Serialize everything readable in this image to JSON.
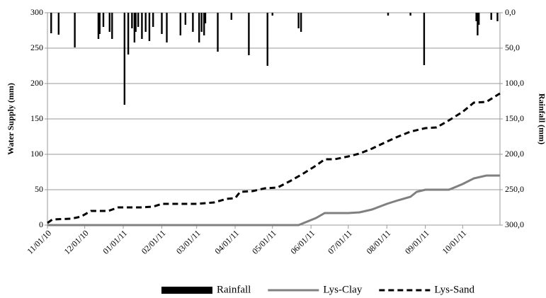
{
  "chart_data": {
    "type": "line",
    "ylabel": "Water Supply (mm)",
    "y2label": "Rainfall (mm)",
    "xlim": [
      "11/01/10",
      "10/31/11"
    ],
    "xticks": [
      "11/01/10",
      "12/01/10",
      "01/01/11",
      "02/01/11",
      "03/01/11",
      "04/01/11",
      "05/01/11",
      "06/01/11",
      "07/01/11",
      "08/01/11",
      "09/01/11",
      "10/01/11"
    ],
    "ylim": [
      0,
      300
    ],
    "yticks": [
      0,
      50,
      100,
      150,
      200,
      250,
      300
    ],
    "y2lim": [
      300,
      0
    ],
    "y2ticks": [
      {
        "value": 0,
        "label": "0,0"
      },
      {
        "value": 50,
        "label": "50,0"
      },
      {
        "value": 100,
        "label": "100,0"
      },
      {
        "value": 150,
        "label": "150,0"
      },
      {
        "value": 200,
        "label": "200,0"
      },
      {
        "value": 250,
        "label": "250,0"
      },
      {
        "value": 300,
        "label": "300,0"
      }
    ],
    "grid": true,
    "legend": "bottom",
    "series": [
      {
        "name": "Rainfall",
        "type": "bar",
        "axis": "y2",
        "color": "#000000",
        "x": [
          "11/04/10",
          "11/10/10",
          "11/23/10",
          "12/12/10",
          "12/13/10",
          "12/16/10",
          "12/21/10",
          "12/23/10",
          "01/02/11",
          "01/05/11",
          "01/08/11",
          "01/10/11",
          "01/11/11",
          "01/13/11",
          "01/16/11",
          "01/19/11",
          "01/22/11",
          "01/25/11",
          "02/01/11",
          "02/05/11",
          "02/16/11",
          "02/20/11",
          "02/26/11",
          "03/03/11",
          "03/05/11",
          "03/07/11",
          "03/08/11",
          "03/18/11",
          "03/29/11",
          "04/12/11",
          "04/27/11",
          "05/01/11",
          "05/22/11",
          "05/24/11",
          "08/02/11",
          "08/20/11",
          "08/31/11",
          "10/12/11",
          "10/13/11",
          "10/14/11",
          "10/24/11",
          "10/29/11"
        ],
        "values": [
          29,
          31,
          49,
          37,
          30,
          20,
          27,
          37,
          130,
          59,
          22,
          42,
          27,
          20,
          37,
          27,
          40,
          20,
          30,
          42,
          32,
          17,
          27,
          42,
          27,
          32,
          15,
          55,
          10,
          60,
          75,
          4,
          22,
          27,
          4,
          4,
          74,
          12,
          32,
          17,
          10,
          12
        ]
      },
      {
        "name": "Lys-Clay",
        "type": "line",
        "axis": "y",
        "color": "#808080",
        "dash": "solid",
        "x": [
          "11/01/10",
          "05/22/11",
          "06/05/11",
          "06/12/11",
          "07/01/11",
          "07/10/11",
          "07/20/11",
          "08/01/11",
          "08/10/11",
          "08/20/11",
          "08/25/11",
          "09/01/11",
          "09/20/11",
          "10/01/11",
          "10/10/11",
          "10/20/11",
          "10/31/11"
        ],
        "values": [
          0,
          0,
          10,
          17,
          17,
          18,
          22,
          30,
          35,
          40,
          47,
          50,
          50,
          58,
          66,
          70,
          70
        ]
      },
      {
        "name": "Lys-Sand",
        "type": "line",
        "axis": "y",
        "color": "#000000",
        "dash": "dashed",
        "x": [
          "11/01/10",
          "11/05/10",
          "11/20/10",
          "11/28/10",
          "12/06/10",
          "12/20/10",
          "12/28/10",
          "01/15/11",
          "01/25/11",
          "02/01/11",
          "03/01/11",
          "03/15/11",
          "03/25/11",
          "04/01/11",
          "04/05/11",
          "04/15/11",
          "04/25/11",
          "05/05/11",
          "05/15/11",
          "05/25/11",
          "06/05/11",
          "06/12/11",
          "06/20/11",
          "07/01/11",
          "07/10/11",
          "07/20/11",
          "08/01/11",
          "08/10/11",
          "08/20/11",
          "09/01/11",
          "09/10/11",
          "09/20/11",
          "10/01/11",
          "10/10/11",
          "10/20/11",
          "10/31/11"
        ],
        "values": [
          3,
          8,
          9,
          12,
          20,
          20,
          25,
          25,
          26,
          30,
          30,
          32,
          37,
          38,
          47,
          48,
          52,
          53,
          62,
          72,
          84,
          93,
          93,
          97,
          101,
          108,
          118,
          125,
          132,
          137,
          138,
          148,
          160,
          173,
          174,
          186
        ]
      }
    ]
  }
}
